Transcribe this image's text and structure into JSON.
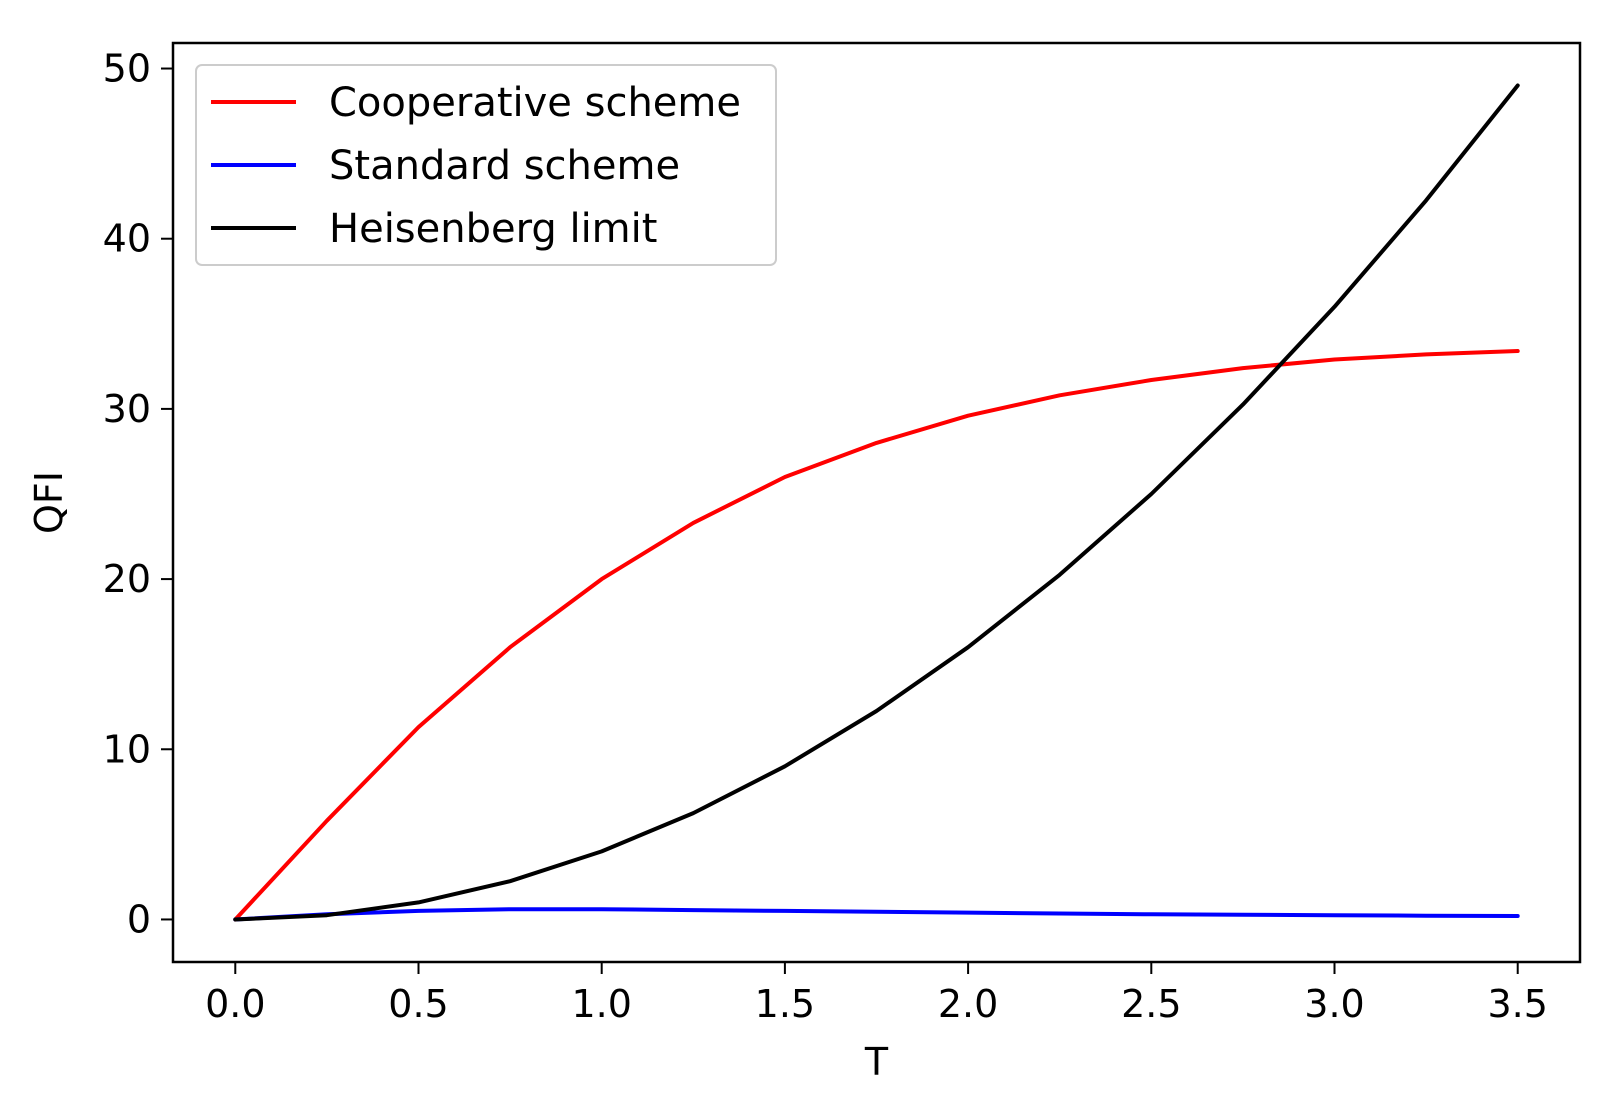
{
  "chart_data": {
    "type": "line",
    "title": "",
    "xlabel": "T",
    "ylabel": "QFI",
    "xlim": [
      -0.17,
      3.67
    ],
    "ylim": [
      -2.5,
      51.5
    ],
    "x_ticks": [
      0.0,
      0.5,
      1.0,
      1.5,
      2.0,
      2.5,
      3.0,
      3.5
    ],
    "x_tick_labels": [
      "0.0",
      "0.5",
      "1.0",
      "1.5",
      "2.0",
      "2.5",
      "3.0",
      "3.5"
    ],
    "y_ticks": [
      0,
      10,
      20,
      30,
      40,
      50
    ],
    "y_tick_labels": [
      "0",
      "10",
      "20",
      "30",
      "40",
      "50"
    ],
    "grid": false,
    "legend": "top-left",
    "series": [
      {
        "name": "Cooperative scheme",
        "color": "#ff0000",
        "x": [
          0.0,
          0.25,
          0.5,
          0.75,
          1.0,
          1.25,
          1.5,
          1.75,
          2.0,
          2.25,
          2.5,
          2.75,
          3.0,
          3.25,
          3.5
        ],
        "y": [
          0.0,
          5.8,
          11.3,
          16.0,
          20.0,
          23.3,
          26.0,
          28.0,
          29.6,
          30.8,
          31.7,
          32.4,
          32.9,
          33.2,
          33.4
        ]
      },
      {
        "name": "Standard scheme",
        "color": "#0000ff",
        "x": [
          0.0,
          0.25,
          0.5,
          0.75,
          1.0,
          1.25,
          1.5,
          1.75,
          2.0,
          2.25,
          2.5,
          2.75,
          3.0,
          3.25,
          3.5
        ],
        "y": [
          0.0,
          0.3,
          0.5,
          0.6,
          0.6,
          0.55,
          0.5,
          0.45,
          0.4,
          0.35,
          0.3,
          0.28,
          0.25,
          0.22,
          0.2
        ]
      },
      {
        "name": "Heisenberg limit",
        "color": "#000000",
        "x": [
          0.0,
          0.25,
          0.5,
          0.75,
          1.0,
          1.25,
          1.5,
          1.75,
          2.0,
          2.25,
          2.5,
          2.75,
          3.0,
          3.25,
          3.5
        ],
        "y": [
          0.0,
          0.25,
          1.0,
          2.25,
          4.0,
          6.25,
          9.0,
          12.25,
          16.0,
          20.25,
          25.0,
          30.25,
          36.0,
          42.25,
          49.0
        ]
      }
    ]
  }
}
